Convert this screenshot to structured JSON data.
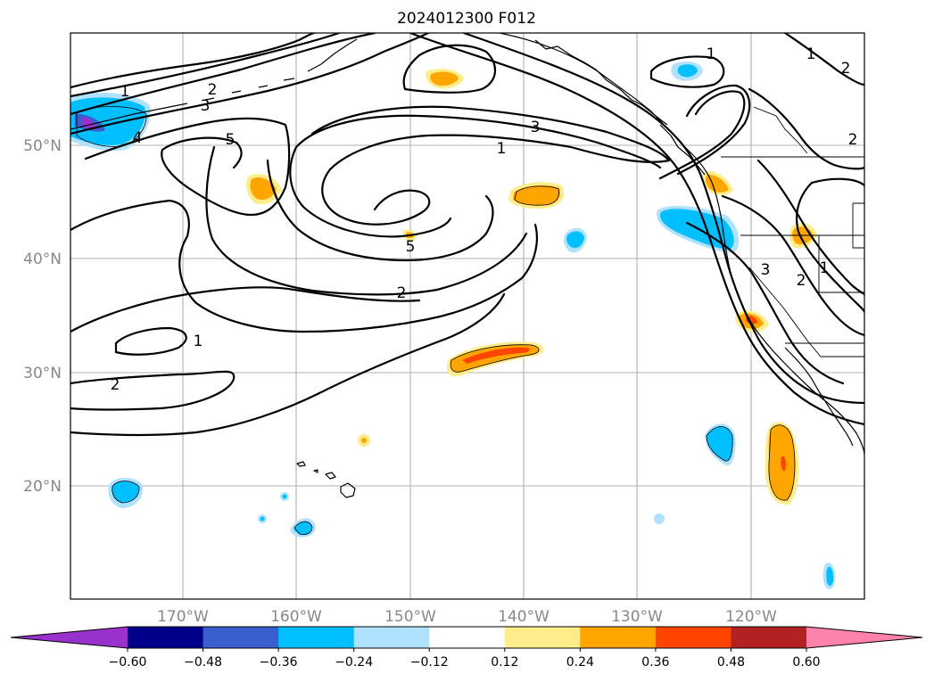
{
  "title": "2024012300 F012",
  "lat_labels": [
    "50°N",
    "40°N",
    "30°N",
    "20°N"
  ],
  "lon_labels": [
    "170°W",
    "160°W",
    "150°W",
    "140°W",
    "130°W",
    "120°W"
  ],
  "contour_labels": [
    "1",
    "2",
    "3",
    "4",
    "5",
    "3",
    "1",
    "5",
    "2",
    "1",
    "2",
    "1",
    "2",
    "3",
    "2",
    "1",
    "1",
    "2"
  ],
  "colorbar": {
    "ticks": [
      "−0.60",
      "−0.48",
      "−0.36",
      "−0.24",
      "−0.12",
      "0.12",
      "0.24",
      "0.36",
      "0.48",
      "0.60"
    ],
    "colors": [
      "#9932cc",
      "#00008b",
      "#3a5fcd",
      "#00bfff",
      "#b0e2ff",
      "#ffffff",
      "#ffec8b",
      "#ffa500",
      "#ff4500",
      "#b22222",
      "#ff82ab"
    ]
  },
  "colors": {
    "neg_strong": "#00bfff",
    "neg_weak": "#b0e2ff",
    "neg_stronger": "#3a5fcd",
    "pos_weak": "#ffec8b",
    "pos_mid": "#ffa500",
    "pos_strong": "#ff4500",
    "grid": "#b0b0b0"
  }
}
